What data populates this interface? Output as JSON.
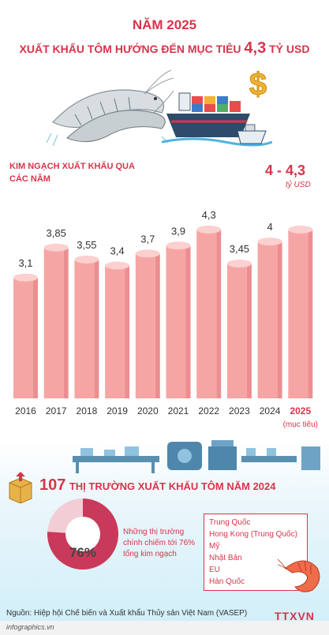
{
  "header": {
    "year": "NĂM 2025",
    "title_pre": "XUẤT KHẨU TÔM HƯỚNG ĐẾN MỤC TIÊU",
    "title_value": "4,3",
    "title_unit": "TỶ USD"
  },
  "chart_label": "KIM NGẠCH XUẤT KHẨU QUA CÁC NĂM",
  "target_label": "4 - 4,3",
  "target_unit": "tỷ USD",
  "chart_data": {
    "type": "bar",
    "categories": [
      "2016",
      "2017",
      "2018",
      "2019",
      "2020",
      "2021",
      "2022",
      "2023",
      "2024",
      "2025"
    ],
    "values": [
      3.1,
      3.85,
      3.55,
      3.4,
      3.7,
      3.9,
      4.3,
      3.45,
      4,
      4.3
    ],
    "value_labels": [
      "3,1",
      "3,85",
      "3,55",
      "3,4",
      "3,7",
      "3,9",
      "4,3",
      "3,45",
      "4",
      ""
    ],
    "category_notes": [
      "",
      "",
      "",
      "",
      "",
      "",
      "",
      "",
      "",
      "(mục tiêu)"
    ],
    "title": "KIM NGẠCH XUẤT KHẨU QUA CÁC NĂM",
    "unit": "tỷ USD",
    "colors": {
      "bar": "#f6a5a5",
      "bar_side": "#ec8e90",
      "bar_top": "#fbd0cf",
      "accent": "#d8344a"
    }
  },
  "markets_section": {
    "count": "107",
    "title": "THỊ TRƯỜNG XUẤT KHẨU TÔM NĂM 2024",
    "share_value": 76,
    "share_label": "76%",
    "note": "Những thị trường chính chiếm tới 76% tổng kim ngạch",
    "markets": [
      "Trung Quốc",
      "Hong Kong (Trung Quốc)",
      "Mỹ",
      "Nhật Bản",
      "EU",
      "Hàn Quốc"
    ]
  },
  "footer": {
    "source": "Nguồn: Hiệp hội Chế biến và Xuất khẩu Thủy sản Việt Nam (VASEP)",
    "site": "infographics.vn",
    "logo": "TTXVN"
  },
  "colors": {
    "accent": "#d8344a",
    "pie": "#c93a5a",
    "sea": "#bfe7f5"
  },
  "icons": [
    "shrimp-illustration",
    "cargo-ship-illustration",
    "dollar-icon",
    "factory-conveyor-illustration",
    "box-icon",
    "shrimp-icon"
  ]
}
